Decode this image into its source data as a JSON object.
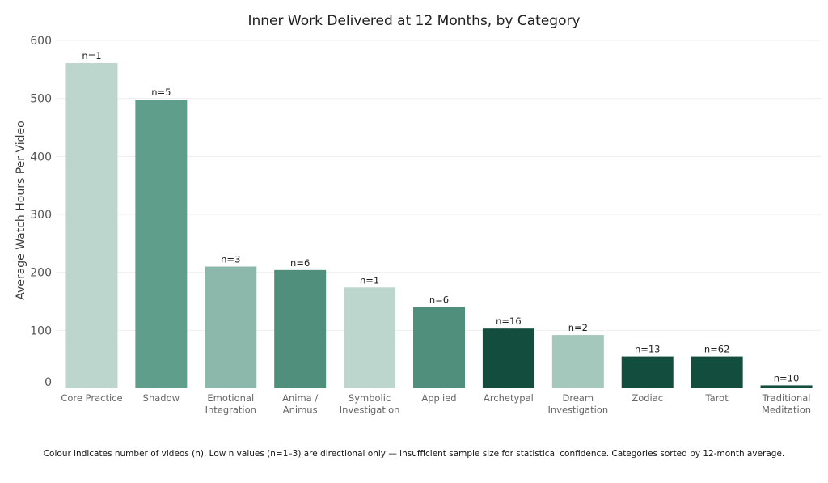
{
  "chart_data": {
    "type": "bar",
    "title": "Inner Work Delivered at 12 Months, by Category",
    "ylabel": "Average Watch Hours Per Video",
    "xlabel": "",
    "ylim": [
      0,
      600
    ],
    "yticks": [
      0,
      100,
      200,
      300,
      400,
      500,
      600
    ],
    "grid": true,
    "categories": [
      [
        "Core Practice"
      ],
      [
        "Shadow"
      ],
      [
        "Emotional",
        "Integration"
      ],
      [
        "Anima /",
        "Animus"
      ],
      [
        "Symbolic",
        "Investigation"
      ],
      [
        "Applied"
      ],
      [
        "Archetypal"
      ],
      [
        "Dream",
        "Investigation"
      ],
      [
        "Zodiac"
      ],
      [
        "Tarot"
      ],
      [
        "Traditional",
        "Meditation"
      ]
    ],
    "values": [
      561,
      498,
      210,
      204,
      174,
      140,
      103,
      92,
      55,
      55,
      5
    ],
    "n_labels": [
      "n=1",
      "n=5",
      "n=3",
      "n=6",
      "n=1",
      "n=6",
      "n=16",
      "n=2",
      "n=13",
      "n=62",
      "n=10"
    ],
    "colors": [
      "#bcd6ce",
      "#5f9e8b",
      "#8bb8aa",
      "#4f8f7c",
      "#bcd6ce",
      "#4f8f7c",
      "#124d3e",
      "#a5c8bd",
      "#124d3e",
      "#124d3e",
      "#124d3e"
    ],
    "footnote": "Colour indicates number of videos (n). Low n values (n=1–3) are directional only — insufficient sample size for statistical confidence. Categories sorted by 12-month average."
  }
}
